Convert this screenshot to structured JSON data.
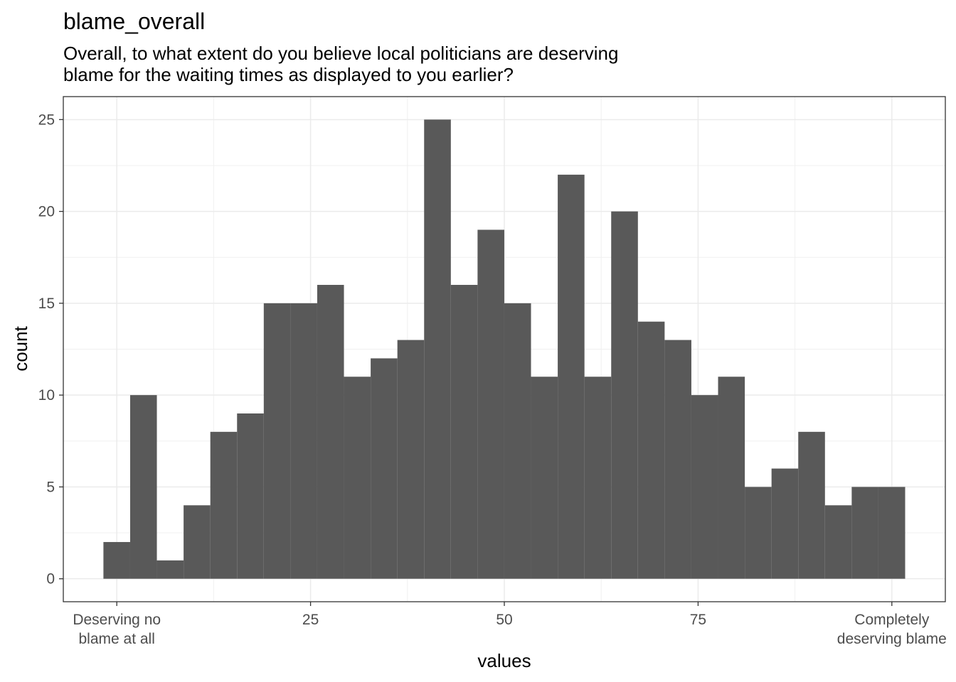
{
  "chart_data": {
    "type": "bar",
    "title": "blame_overall",
    "subtitle": [
      "Overall, to what extent do you believe local politicians are deserving",
      "blame for the waiting times as displayed to you earlier?"
    ],
    "xlabel": "values",
    "ylabel": "count",
    "xlim": [
      -6.9,
      106.9
    ],
    "ylim": [
      -1.25,
      26.25
    ],
    "x_ticks": [
      {
        "value": 0,
        "label": [
          "Deserving no",
          "blame at all"
        ]
      },
      {
        "value": 25,
        "label": [
          "25"
        ]
      },
      {
        "value": 50,
        "label": [
          "50"
        ]
      },
      {
        "value": 75,
        "label": [
          "75"
        ]
      },
      {
        "value": 100,
        "label": [
          "Completely",
          "deserving blame"
        ]
      }
    ],
    "y_ticks": [
      0,
      5,
      10,
      15,
      20,
      25
    ],
    "bin_width": 3.448,
    "bins_start": -1.724,
    "values": [
      2,
      10,
      1,
      4,
      8,
      9,
      15,
      15,
      16,
      11,
      12,
      13,
      25,
      16,
      19,
      15,
      11,
      22,
      11,
      20,
      14,
      13,
      10,
      11,
      5,
      6,
      8,
      4,
      5,
      5
    ],
    "bar_color": "#595959",
    "grid": true
  }
}
